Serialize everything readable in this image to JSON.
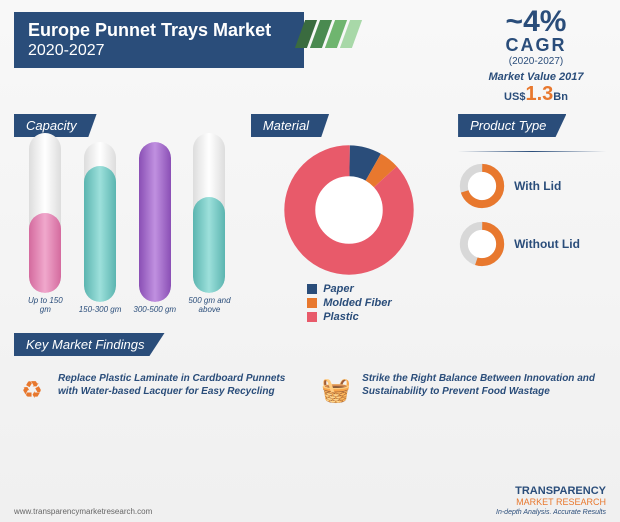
{
  "header": {
    "title": "Europe Punnet Trays Market",
    "years": "2020-2027",
    "stripe_colors": [
      "#3a6b3f",
      "#4a8a50",
      "#6fb56f",
      "#a8d8a8"
    ]
  },
  "cagr": {
    "value": "~4%",
    "label": "CAGR",
    "years": "(2020-2027)",
    "mv_label": "Market Value 2017",
    "mv_prefix": "US$",
    "mv_value": "1.3",
    "mv_suffix": "Bn"
  },
  "capacity": {
    "tab": "Capacity",
    "bars": [
      {
        "label": "Up to 150 gm",
        "pct": 50,
        "color": "linear-gradient(to right,#d46a9e,#f0a8cc,#d46a9e)"
      },
      {
        "label": "150-300 gm",
        "pct": 85,
        "color": "linear-gradient(to right,#5bb5b0,#9de0db,#5bb5b0)"
      },
      {
        "label": "300-500 gm",
        "pct": 100,
        "color": "linear-gradient(to right,#8a4fb5,#c090e0,#8a4fb5)"
      },
      {
        "label": "500 gm and above",
        "pct": 60,
        "color": "linear-gradient(to right,#5bb5b0,#9de0db,#5bb5b0)"
      }
    ]
  },
  "material": {
    "tab": "Material",
    "slices": [
      {
        "name": "Paper",
        "value": 8,
        "color": "#2a4d7a"
      },
      {
        "name": "Molded Fiber",
        "value": 5,
        "color": "#e8782e"
      },
      {
        "name": "Plastic",
        "value": 87,
        "color": "#e85a6a"
      }
    ],
    "bg": "#ffffff"
  },
  "product": {
    "tab": "Product Type",
    "items": [
      {
        "label": "With Lid",
        "pct": 70,
        "color": "#e8782e",
        "track": "#d8d8d8"
      },
      {
        "label": "Without Lid",
        "pct": 55,
        "color": "#e8782e",
        "track": "#d8d8d8"
      }
    ]
  },
  "findings": {
    "tab": "Key Market Findings",
    "items": [
      {
        "icon": "♻",
        "icon_color": "#e8782e",
        "text": "Replace Plastic Laminate in Cardboard Punnets with Water-based Lacquer for Easy Recycling"
      },
      {
        "icon": "🧺",
        "icon_color": "#e8782e",
        "text": "Strike the Right Balance Between Innovation and Sustainability to Prevent Food Wastage"
      }
    ]
  },
  "footer": {
    "url": "www.transparencymarketresearch.com",
    "logo1": "TRANSPARENCY",
    "logo2": "MARKET RESEARCH",
    "tagline": "In-depth Analysis. Accurate Results"
  }
}
